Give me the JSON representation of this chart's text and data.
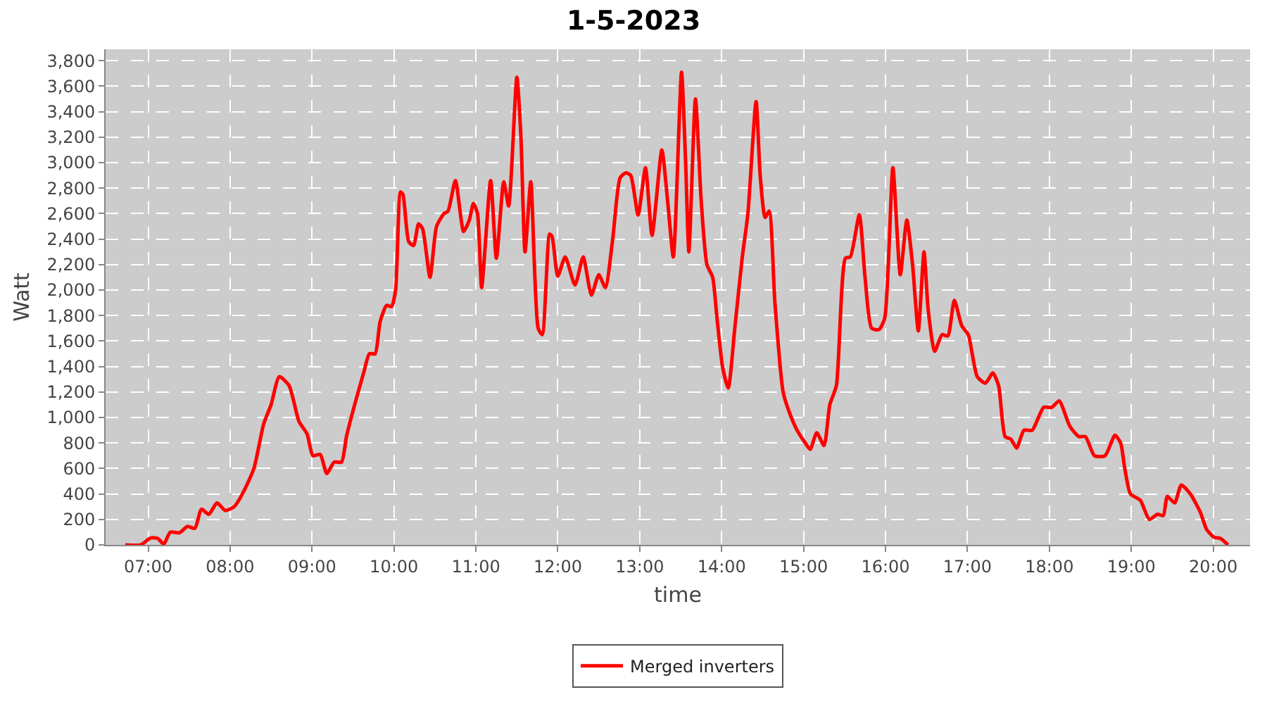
{
  "chart_data": {
    "type": "line",
    "title": "1-5-2023",
    "xlabel": "time",
    "ylabel": "Watt",
    "xlim": [
      6.48,
      20.45
    ],
    "ylim": [
      0,
      3890
    ],
    "xticks": [
      {
        "value": 7,
        "label": "07:00"
      },
      {
        "value": 8,
        "label": "08:00"
      },
      {
        "value": 9,
        "label": "09:00"
      },
      {
        "value": 10,
        "label": "10:00"
      },
      {
        "value": 11,
        "label": "11:00"
      },
      {
        "value": 12,
        "label": "12:00"
      },
      {
        "value": 13,
        "label": "13:00"
      },
      {
        "value": 14,
        "label": "14:00"
      },
      {
        "value": 15,
        "label": "15:00"
      },
      {
        "value": 16,
        "label": "16:00"
      },
      {
        "value": 17,
        "label": "17:00"
      },
      {
        "value": 18,
        "label": "18:00"
      },
      {
        "value": 19,
        "label": "19:00"
      },
      {
        "value": 20,
        "label": "20:00"
      }
    ],
    "yticks": [
      0,
      200,
      400,
      600,
      800,
      {
        "value": 1000,
        "label": "1,000"
      },
      {
        "value": 1200,
        "label": "1,200"
      },
      {
        "value": 1400,
        "label": "1,400"
      },
      {
        "value": 1600,
        "label": "1,600"
      },
      {
        "value": 1800,
        "label": "1,800"
      },
      {
        "value": 2000,
        "label": "2,000"
      },
      {
        "value": 2200,
        "label": "2,200"
      },
      {
        "value": 2400,
        "label": "2,400"
      },
      {
        "value": 2600,
        "label": "2,600"
      },
      {
        "value": 2800,
        "label": "2,800"
      },
      {
        "value": 3000,
        "label": "3,000"
      },
      {
        "value": 3200,
        "label": "3,200"
      },
      {
        "value": 3400,
        "label": "3,400"
      },
      {
        "value": 3600,
        "label": "3,600"
      },
      {
        "value": 3800,
        "label": "3,800"
      }
    ],
    "grid": true,
    "legend": "bottom",
    "marker": "none",
    "line_style": "solid",
    "x": [
      6.72,
      6.91,
      7.03,
      7.12,
      7.19,
      7.27,
      7.38,
      7.48,
      7.57,
      7.65,
      7.74,
      7.84,
      7.94,
      8.05,
      8.15,
      8.29,
      8.41,
      8.5,
      8.6,
      8.72,
      8.84,
      8.94,
      9.01,
      9.1,
      9.18,
      9.27,
      9.36,
      9.42,
      9.52,
      9.63,
      9.7,
      9.77,
      9.83,
      9.91,
      9.97,
      10.02,
      10.08,
      10.11,
      10.18,
      10.24,
      10.3,
      10.35,
      10.44,
      10.52,
      10.61,
      10.66,
      10.75,
      10.85,
      10.92,
      10.97,
      11.02,
      11.07,
      11.18,
      11.25,
      11.34,
      11.4,
      11.5,
      11.55,
      11.6,
      11.67,
      11.76,
      11.81,
      11.9,
      11.93,
      12.0,
      12.09,
      12.21,
      12.31,
      12.41,
      12.5,
      12.58,
      12.67,
      12.76,
      12.83,
      12.89,
      12.98,
      13.07,
      13.15,
      13.27,
      13.34,
      13.41,
      13.51,
      13.56,
      13.6,
      13.68,
      13.75,
      13.82,
      13.89,
      13.94,
      14.01,
      14.08,
      14.16,
      14.25,
      14.32,
      14.42,
      14.47,
      14.53,
      14.58,
      14.65,
      14.75,
      14.82,
      14.92,
      15.01,
      15.08,
      15.16,
      15.25,
      15.32,
      15.4,
      15.51,
      15.57,
      15.68,
      15.75,
      15.83,
      15.92,
      15.99,
      16.09,
      16.18,
      16.26,
      16.33,
      16.4,
      16.47,
      16.52,
      16.6,
      16.69,
      16.76,
      16.84,
      16.93,
      17.01,
      17.12,
      17.22,
      17.31,
      17.38,
      17.46,
      17.53,
      17.6,
      17.69,
      17.79,
      17.93,
      18.03,
      18.12,
      18.25,
      18.36,
      18.44,
      18.55,
      18.68,
      18.8,
      18.87,
      18.92,
      18.99,
      19.11,
      19.22,
      19.32,
      19.39,
      19.44,
      19.53,
      19.61,
      19.72,
      19.84,
      19.92,
      20.01,
      20.09,
      20.18
    ],
    "series": [
      {
        "name": "Merged inverters",
        "color": "#ff0000",
        "values": [
          0,
          0,
          55,
          50,
          5,
          100,
          95,
          145,
          130,
          280,
          240,
          330,
          270,
          300,
          400,
          600,
          950,
          1100,
          1320,
          1250,
          970,
          870,
          700,
          710,
          560,
          650,
          650,
          850,
          1100,
          1350,
          1500,
          1500,
          1750,
          1880,
          1870,
          2000,
          2770,
          2750,
          2380,
          2350,
          2520,
          2480,
          2100,
          2500,
          2600,
          2620,
          2860,
          2460,
          2550,
          2680,
          2600,
          2020,
          2860,
          2250,
          2850,
          2660,
          3670,
          3200,
          2300,
          2850,
          1700,
          1650,
          2440,
          2420,
          2110,
          2260,
          2040,
          2260,
          1960,
          2120,
          2020,
          2400,
          2880,
          2920,
          2900,
          2590,
          2960,
          2430,
          3100,
          2700,
          2260,
          3710,
          3000,
          2300,
          3500,
          2700,
          2200,
          2100,
          1800,
          1400,
          1230,
          1700,
          2250,
          2600,
          3480,
          2900,
          2570,
          2620,
          1900,
          1200,
          1050,
          900,
          810,
          750,
          880,
          780,
          1100,
          1250,
          2250,
          2260,
          2590,
          2100,
          1700,
          1690,
          1780,
          2960,
          2120,
          2550,
          2200,
          1680,
          2300,
          1850,
          1520,
          1650,
          1640,
          1920,
          1720,
          1650,
          1320,
          1270,
          1350,
          1250,
          850,
          830,
          760,
          900,
          900,
          1080,
          1080,
          1130,
          930,
          850,
          850,
          700,
          700,
          860,
          800,
          600,
          400,
          350,
          200,
          240,
          230,
          380,
          330,
          470,
          400,
          260,
          120,
          60,
          50,
          0
        ]
      }
    ]
  }
}
